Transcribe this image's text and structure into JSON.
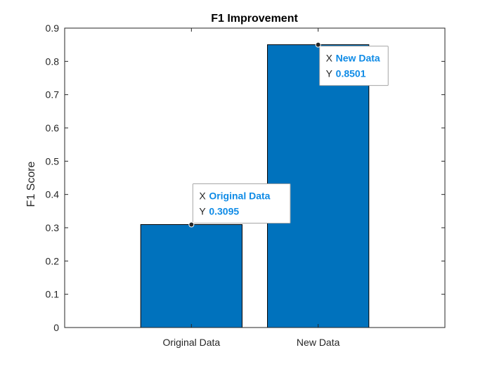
{
  "chart_data": {
    "type": "bar",
    "title": "F1 Improvement",
    "xlabel": "",
    "ylabel": "F1 Score",
    "categories": [
      "Original Data",
      "New Data"
    ],
    "values": [
      0.3095,
      0.8501
    ],
    "ylim": [
      0,
      0.9
    ],
    "yticks": [
      "0",
      "0.1",
      "0.2",
      "0.3",
      "0.4",
      "0.5",
      "0.6",
      "0.7",
      "0.8",
      "0.9"
    ],
    "bar_color": "#0072BD",
    "datatips": [
      {
        "x_key": "X",
        "x_value": "Original Data",
        "y_key": "Y",
        "y_value": "0.3095"
      },
      {
        "x_key": "X",
        "x_value": "New Data",
        "y_key": "Y",
        "y_value": "0.8501"
      }
    ],
    "datatip_value_color": "#0F8BE6",
    "grid": false,
    "legend": "none"
  }
}
